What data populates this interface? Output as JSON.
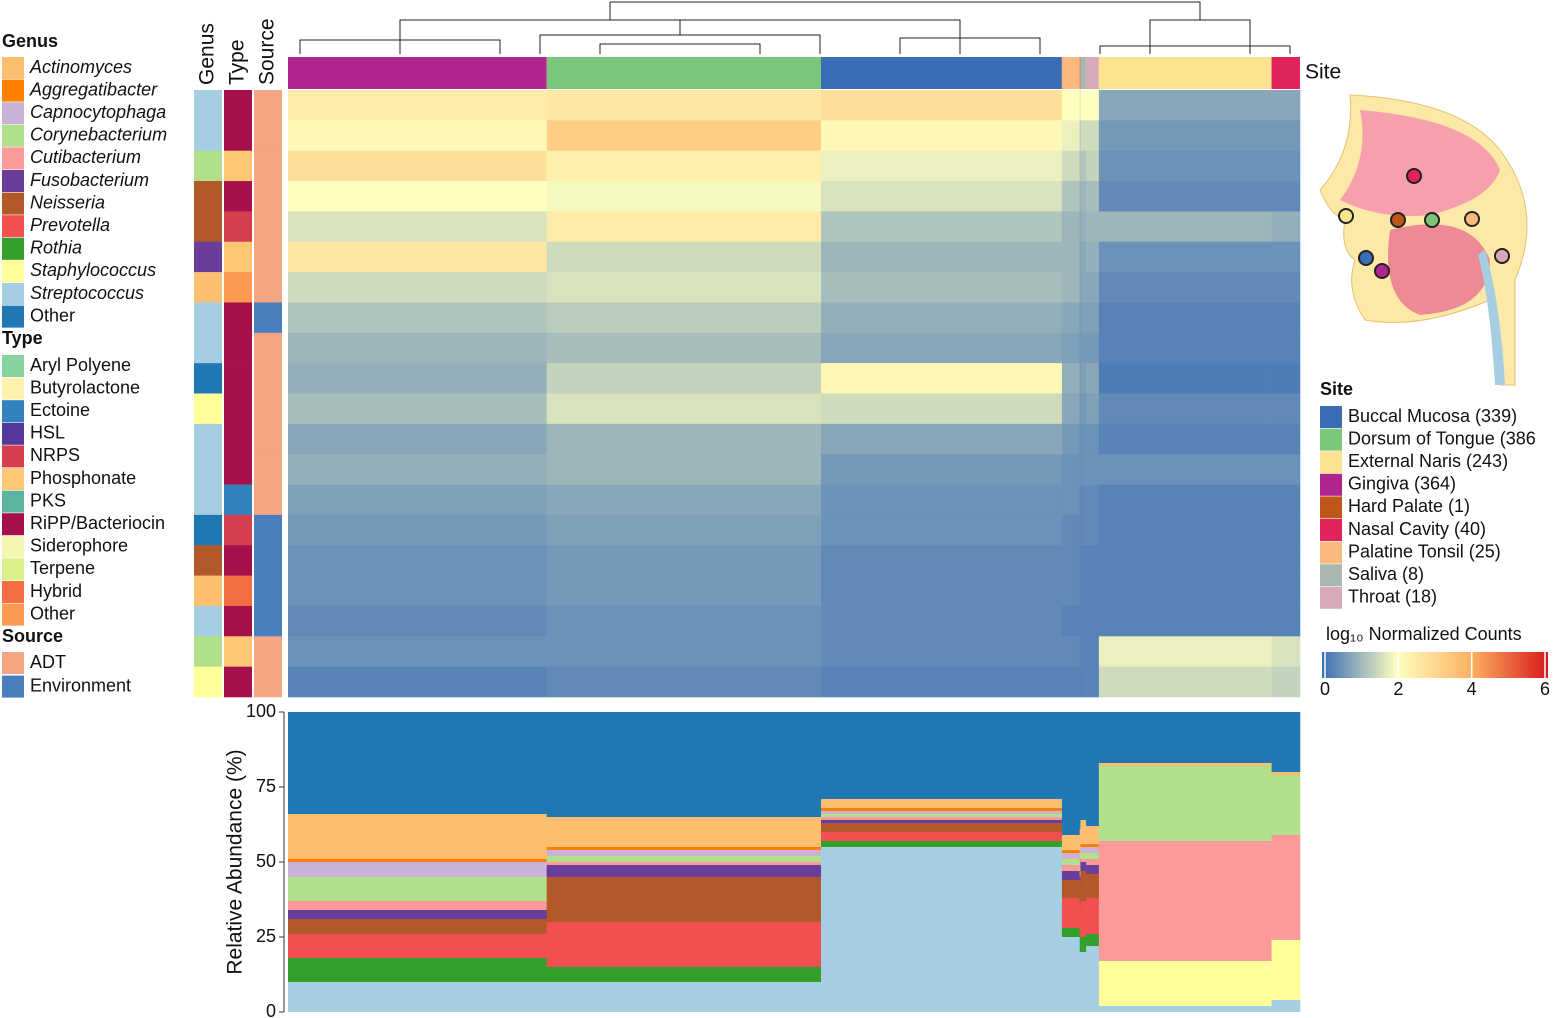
{
  "chart_data": {
    "type": "heatmap",
    "genus_legend": {
      "title": "Genus",
      "labels": [
        "Actinomyces",
        "Aggregatibacter",
        "Capnocytophaga",
        "Corynebacterium",
        "Cutibacterium",
        "Fusobacterium",
        "Neisseria",
        "Prevotella",
        "Rothia",
        "Staphylococcus",
        "Streptococcus",
        "Other"
      ],
      "colors": [
        "#fdbf6f",
        "#ff7f00",
        "#cab2d6",
        "#b2df8a",
        "#fb9a99",
        "#6a3d9a",
        "#b15928",
        "#f0504f",
        "#33a02c",
        "#ffff99",
        "#a6cee3",
        "#1f78b4"
      ]
    },
    "type_legend": {
      "title": "Type",
      "labels": [
        "Aryl Polyene",
        "Butyrolactone",
        "Ectoine",
        "HSL",
        "NRPS",
        "Phosphonate",
        "PKS",
        "RiPP/Bacteriocin",
        "Siderophore",
        "Terpene",
        "Hybrid",
        "Other"
      ],
      "colors": [
        "#88d1a0",
        "#fff2ae",
        "#3182bd",
        "#54399a",
        "#d53e4f",
        "#fdc875",
        "#5ab4a0",
        "#a50f4c",
        "#f5f7b0",
        "#d9ef8b",
        "#f46d43",
        "#fd9a50"
      ]
    },
    "source_legend": {
      "title": "Source",
      "labels": [
        "ADT",
        "Environment"
      ],
      "colors": [
        "#f4a582",
        "#4a7fbf"
      ]
    },
    "site_legend": {
      "title": "Site",
      "labels": [
        "Buccal Mucosa (339)",
        "Dorsum of Tongue (386",
        "External Naris (243)",
        "Gingiva (364)",
        "Hard Palate (1)",
        "Nasal Cavity (40)",
        "Palatine Tonsil (25)",
        "Saliva (8)",
        "Throat (18)"
      ],
      "colors": [
        "#3a6db5",
        "#7cc67c",
        "#fbe38f",
        "#b0248d",
        "#c0561a",
        "#e0245a",
        "#fcb97d",
        "#a8b8b0",
        "#d8aab8"
      ]
    },
    "column_labels": [
      "Genus",
      "Type",
      "Source"
    ],
    "site_strip": {
      "label": "Site",
      "site": [
        3,
        1,
        0,
        6,
        4,
        7,
        8,
        2,
        5
      ],
      "samples": [
        364,
        386,
        339,
        25,
        1,
        8,
        18,
        243,
        40
      ]
    },
    "row_genus": [
      10,
      10,
      3,
      6,
      6,
      5,
      0,
      10,
      10,
      11,
      9,
      10,
      10,
      10,
      11,
      6,
      0,
      10,
      3,
      9
    ],
    "row_type": [
      7,
      7,
      5,
      7,
      4,
      5,
      11,
      7,
      7,
      7,
      7,
      7,
      7,
      2,
      4,
      7,
      10,
      7,
      5,
      7
    ],
    "row_source": [
      0,
      0,
      0,
      0,
      0,
      0,
      0,
      1,
      0,
      0,
      0,
      0,
      0,
      0,
      1,
      1,
      1,
      1,
      0,
      0
    ],
    "heatmap": {
      "values": [
        [
          2.5,
          2.6,
          2.8,
          2,
          1.5,
          2,
          2,
          0.8,
          0.8
        ],
        [
          2.2,
          3.2,
          2.2,
          1.8,
          1,
          1.5,
          1.5,
          0.6,
          0.6
        ],
        [
          2.8,
          2.4,
          1.8,
          1.5,
          1,
          1.2,
          1.4,
          0.5,
          0.5
        ],
        [
          2,
          1.9,
          1.6,
          1.2,
          0.8,
          1,
          1.1,
          0.4,
          0.4
        ],
        [
          1.6,
          2.5,
          1.2,
          1,
          0.7,
          0.9,
          1,
          1,
          0.9
        ],
        [
          2.6,
          1.5,
          1,
          1,
          0.6,
          0.8,
          0.9,
          0.5,
          0.5
        ],
        [
          1.5,
          1.6,
          1.1,
          1,
          0.6,
          0.8,
          0.8,
          0.4,
          0.4
        ],
        [
          1.2,
          1.3,
          0.9,
          0.8,
          0.5,
          0.7,
          0.7,
          0.3,
          0.3
        ],
        [
          1,
          1.1,
          0.8,
          0.7,
          0.5,
          0.6,
          0.6,
          0.3,
          0.3
        ],
        [
          0.9,
          1.4,
          2.2,
          0.9,
          0.5,
          0.7,
          0.8,
          0.2,
          0.2
        ],
        [
          1.1,
          1.6,
          1.5,
          0.8,
          0.5,
          0.6,
          0.7,
          0.4,
          0.4
        ],
        [
          0.8,
          1,
          0.8,
          0.6,
          0.4,
          0.5,
          0.5,
          0.3,
          0.3
        ],
        [
          0.9,
          1,
          0.6,
          0.5,
          0.4,
          0.5,
          0.5,
          0.5,
          0.5
        ],
        [
          0.7,
          0.8,
          0.5,
          0.5,
          0.3,
          0.4,
          0.4,
          0.3,
          0.3
        ],
        [
          0.6,
          0.7,
          0.5,
          0.4,
          0.3,
          0.4,
          0.4,
          0.3,
          0.3
        ],
        [
          0.5,
          0.6,
          0.4,
          0.4,
          0.3,
          0.3,
          0.3,
          0.3,
          0.3
        ],
        [
          0.5,
          0.6,
          0.4,
          0.4,
          0.3,
          0.3,
          0.3,
          0.3,
          0.3
        ],
        [
          0.4,
          0.5,
          0.4,
          0.3,
          0.3,
          0.3,
          0.3,
          0.3,
          0.3
        ],
        [
          0.5,
          0.5,
          0.4,
          0.4,
          0.3,
          0.3,
          0.3,
          1.8,
          1.6
        ],
        [
          0.3,
          0.4,
          0.3,
          0.3,
          0.2,
          0.3,
          0.3,
          1.5,
          1.4
        ]
      ]
    },
    "colorbar": {
      "title": "log₁₀ Normalized Counts",
      "lim": [
        0,
        6
      ],
      "ticks": [
        0,
        2,
        4,
        6
      ],
      "colors": [
        "#3a6db5",
        "#ffffbf",
        "#fdae61",
        "#d7191c"
      ]
    },
    "abundance": {
      "ylabel": "Relative Abundance (%)",
      "ylim": [
        0,
        100
      ],
      "yticks": [
        0,
        25,
        50,
        75,
        100
      ],
      "values": [
        [
          15,
          10,
          3,
          5,
          10,
          8,
          6,
          1,
          1
        ],
        [
          1,
          1,
          1,
          1,
          1,
          1,
          1,
          0,
          0
        ],
        [
          5,
          2,
          1,
          2,
          2,
          2,
          2,
          0,
          0
        ],
        [
          8,
          2,
          1,
          2,
          2,
          2,
          2,
          25,
          20
        ],
        [
          3,
          1,
          1,
          2,
          1,
          1,
          2,
          40,
          35
        ],
        [
          3,
          4,
          1,
          3,
          2,
          3,
          3,
          0,
          0
        ],
        [
          5,
          15,
          3,
          6,
          8,
          10,
          8,
          0,
          0
        ],
        [
          8,
          15,
          3,
          10,
          10,
          12,
          12,
          0,
          0
        ],
        [
          8,
          5,
          2,
          3,
          5,
          5,
          4,
          0,
          0
        ],
        [
          0,
          0,
          0,
          0,
          0,
          0,
          0,
          15,
          20
        ],
        [
          10,
          10,
          55,
          25,
          20,
          20,
          22,
          2,
          4
        ],
        [
          34,
          35,
          29,
          41,
          39,
          36,
          38,
          17,
          20
        ]
      ]
    }
  }
}
